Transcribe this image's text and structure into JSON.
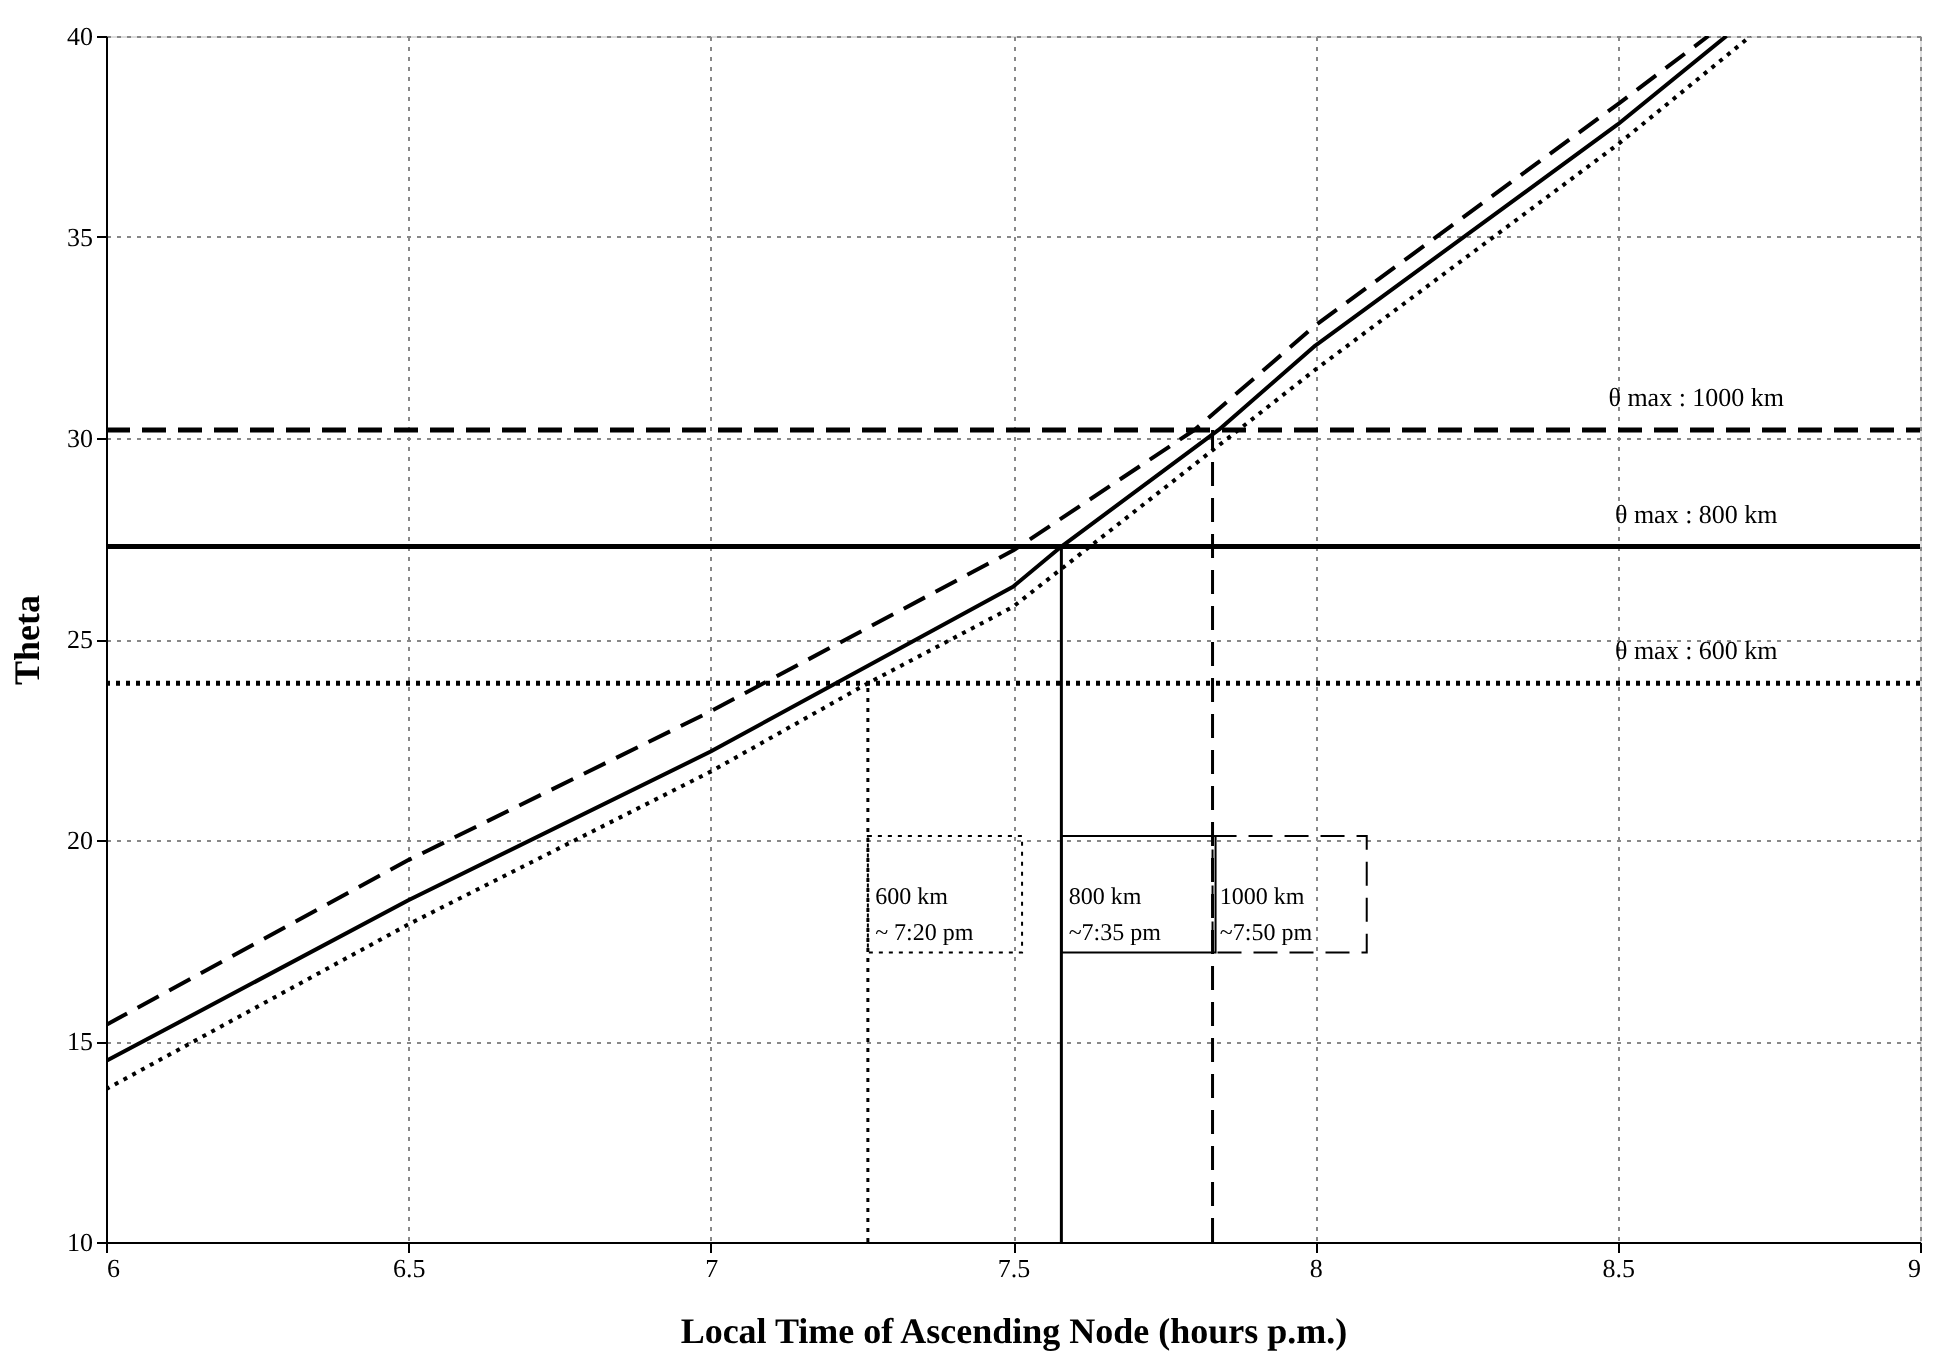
{
  "chart_data": {
    "type": "line",
    "xlabel": "Local Time of Ascending Node (hours p.m.)",
    "ylabel": "Theta",
    "xlim": [
      6,
      9
    ],
    "ylim": [
      10,
      40
    ],
    "xticks": [
      6,
      6.5,
      7,
      7.5,
      8,
      8.5,
      9
    ],
    "yticks": [
      10,
      15,
      20,
      25,
      30,
      35,
      40
    ],
    "grid": true,
    "legend": false,
    "marker": "none",
    "series": [
      {
        "color": "#000000",
        "line_style": "dashed",
        "x": [
          6,
          6.5,
          7,
          7.5,
          7.8,
          8,
          8.5,
          8.65
        ],
        "values": [
          15.4,
          19.5,
          23.2,
          27.2,
          30.2,
          32.8,
          38.3,
          40
        ]
      },
      {
        "color": "#000000",
        "line_style": "solid",
        "x": [
          6,
          6.5,
          7,
          7.5,
          7.58,
          7.84,
          8,
          8.5,
          8.68
        ],
        "values": [
          14.5,
          18.5,
          22.2,
          26.3,
          27.3,
          30.2,
          32.3,
          37.8,
          40
        ]
      },
      {
        "color": "#000000",
        "line_style": "dotted",
        "x": [
          6,
          6.5,
          7,
          7.26,
          7.5,
          8,
          8.5,
          8.72
        ],
        "values": [
          13.8,
          17.9,
          21.7,
          23.9,
          25.8,
          31.7,
          37.3,
          40
        ]
      }
    ],
    "ref_lines": [
      {
        "axis": "y",
        "value": 30.2,
        "color": "#000000",
        "line_style": "dashed"
      },
      {
        "axis": "y",
        "value": 27.3,
        "color": "#000000",
        "line_style": "solid"
      },
      {
        "axis": "y",
        "value": 23.9,
        "color": "#000000",
        "line_style": "dotted"
      },
      {
        "axis": "x",
        "value": 7.83,
        "color": "#000000",
        "line_style": "dashed"
      },
      {
        "axis": "x",
        "value": 7.58,
        "color": "#000000",
        "line_style": "solid"
      },
      {
        "axis": "x",
        "value": 7.26,
        "color": "#000000",
        "line_style": "dotted"
      }
    ],
    "annotations": [
      {
        "text": "θ max : 1000 km",
        "x": 8.63,
        "y": 30.2
      },
      {
        "text": "θ max : 800 km",
        "x": 8.63,
        "y": 27.3
      },
      {
        "text": "θ max : 600 km",
        "x": 8.63,
        "y": 23.9
      },
      {
        "text": "1000 km\n~7:50 pm",
        "x": 7.83,
        "y": 18.6
      },
      {
        "text": "800 km\n~7:35 pm",
        "x": 7.58,
        "y": 18.6
      },
      {
        "text": "600 km\n~ 7:20 pm",
        "x": 7.26,
        "y": 18.6
      }
    ]
  }
}
